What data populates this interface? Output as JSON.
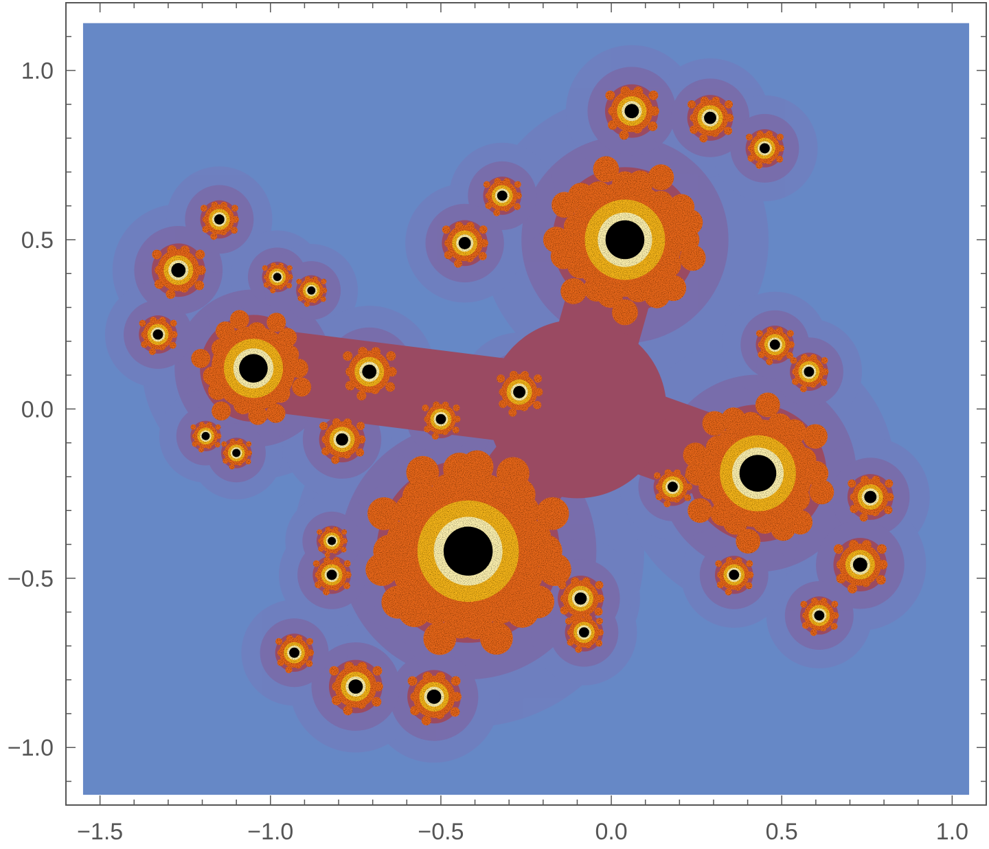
{
  "chart_data": {
    "type": "heatmap",
    "title": "",
    "xlabel": "",
    "ylabel": "",
    "xlim": [
      -1.6,
      1.1
    ],
    "ylim": [
      -1.17,
      1.2
    ],
    "plot_range_x": [
      -1.55,
      1.05
    ],
    "plot_range_y": [
      -1.14,
      1.14
    ],
    "x_ticks": [
      {
        "value": -1.5,
        "label": "−1.5"
      },
      {
        "value": -1.0,
        "label": "−1.0"
      },
      {
        "value": -0.5,
        "label": "−0.5"
      },
      {
        "value": 0.0,
        "label": "0.0"
      },
      {
        "value": 0.5,
        "label": "0.5"
      },
      {
        "value": 1.0,
        "label": "1.0"
      }
    ],
    "y_ticks": [
      {
        "value": 1.0,
        "label": "1.0"
      },
      {
        "value": 0.5,
        "label": "0.5"
      },
      {
        "value": 0.0,
        "label": "0.0"
      },
      {
        "value": -0.5,
        "label": "−0.5"
      },
      {
        "value": -1.0,
        "label": "−1.0"
      }
    ],
    "grid": false,
    "legend": "none",
    "colors": {
      "background": "#6688c6",
      "halo_outer": "#6f7fbf",
      "halo_inner": "#7a6aa8",
      "body": "#9a4a62",
      "orange": "#e8681e",
      "gold": "#f6b51c",
      "pale": "#fff3b0",
      "core": "#000000",
      "axis": "#555555"
    },
    "features": [
      {
        "kind": "bulb",
        "x": -0.42,
        "y": -0.42,
        "r": 0.24
      },
      {
        "kind": "bulb",
        "x": 0.04,
        "y": 0.5,
        "r": 0.19
      },
      {
        "kind": "bulb",
        "x": 0.43,
        "y": -0.19,
        "r": 0.18
      },
      {
        "kind": "bulb",
        "x": -1.05,
        "y": 0.12,
        "r": 0.14
      },
      {
        "kind": "bulb",
        "x": 0.06,
        "y": 0.88,
        "r": 0.07
      },
      {
        "kind": "bulb",
        "x": 0.29,
        "y": 0.86,
        "r": 0.06
      },
      {
        "kind": "bulb",
        "x": 0.45,
        "y": 0.77,
        "r": 0.05
      },
      {
        "kind": "bulb",
        "x": -0.32,
        "y": 0.63,
        "r": 0.05
      },
      {
        "kind": "bulb",
        "x": -0.43,
        "y": 0.49,
        "r": 0.06
      },
      {
        "kind": "bulb",
        "x": -1.27,
        "y": 0.41,
        "r": 0.07
      },
      {
        "kind": "bulb",
        "x": -1.15,
        "y": 0.56,
        "r": 0.05
      },
      {
        "kind": "bulb",
        "x": -1.33,
        "y": 0.22,
        "r": 0.05
      },
      {
        "kind": "bulb",
        "x": -0.98,
        "y": 0.39,
        "r": 0.04
      },
      {
        "kind": "bulb",
        "x": -0.88,
        "y": 0.35,
        "r": 0.04
      },
      {
        "kind": "bulb",
        "x": -0.71,
        "y": 0.11,
        "r": 0.07
      },
      {
        "kind": "bulb",
        "x": -0.79,
        "y": -0.09,
        "r": 0.06
      },
      {
        "kind": "bulb",
        "x": -1.19,
        "y": -0.08,
        "r": 0.04
      },
      {
        "kind": "bulb",
        "x": -1.1,
        "y": -0.13,
        "r": 0.04
      },
      {
        "kind": "bulb",
        "x": 0.48,
        "y": 0.19,
        "r": 0.05
      },
      {
        "kind": "bulb",
        "x": 0.58,
        "y": 0.11,
        "r": 0.05
      },
      {
        "kind": "bulb",
        "x": 0.76,
        "y": -0.26,
        "r": 0.06
      },
      {
        "kind": "bulb",
        "x": 0.73,
        "y": -0.46,
        "r": 0.07
      },
      {
        "kind": "bulb",
        "x": 0.61,
        "y": -0.61,
        "r": 0.05
      },
      {
        "kind": "bulb",
        "x": -0.09,
        "y": -0.56,
        "r": 0.06
      },
      {
        "kind": "bulb",
        "x": -0.08,
        "y": -0.66,
        "r": 0.05
      },
      {
        "kind": "bulb",
        "x": -0.52,
        "y": -0.85,
        "r": 0.07
      },
      {
        "kind": "bulb",
        "x": -0.75,
        "y": -0.82,
        "r": 0.07
      },
      {
        "kind": "bulb",
        "x": -0.93,
        "y": -0.72,
        "r": 0.05
      },
      {
        "kind": "bulb",
        "x": -0.82,
        "y": -0.49,
        "r": 0.05
      },
      {
        "kind": "bulb",
        "x": -0.82,
        "y": -0.39,
        "r": 0.04
      },
      {
        "kind": "bulb",
        "x": -0.27,
        "y": 0.05,
        "r": 0.06
      },
      {
        "kind": "bulb",
        "x": -0.5,
        "y": -0.03,
        "r": 0.05
      },
      {
        "kind": "bulb",
        "x": 0.18,
        "y": -0.23,
        "r": 0.05
      },
      {
        "kind": "bulb",
        "x": 0.36,
        "y": -0.49,
        "r": 0.05
      }
    ]
  }
}
